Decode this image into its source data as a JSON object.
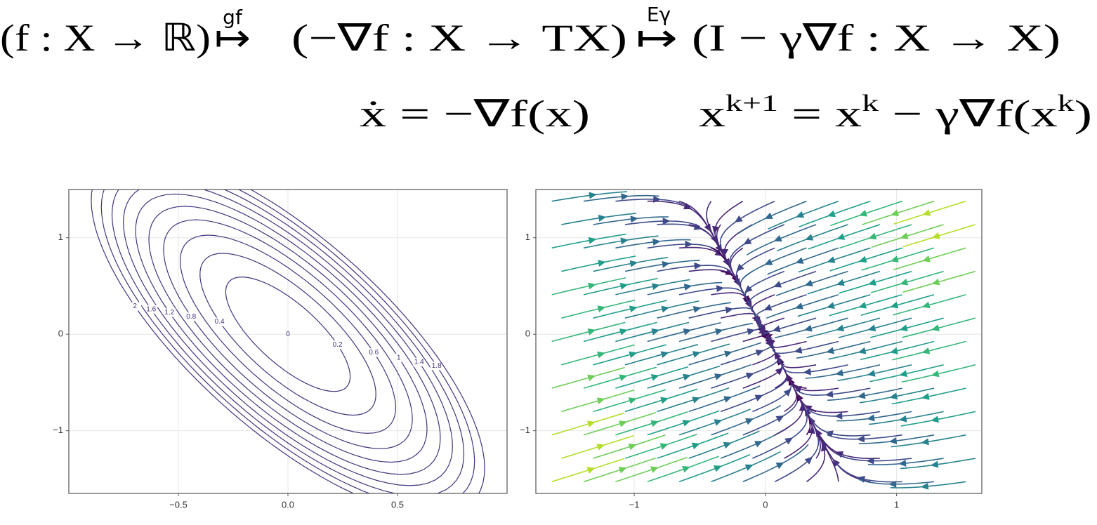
{
  "equations": {
    "map1": "(f : X → ℝ)",
    "arrow1": "↦",
    "label1": "gf",
    "map2": "(−∇f : X → TX)",
    "arrow2": "↦",
    "label2": "Eγ",
    "map3": "(I − γ∇f : X → X)",
    "flow": "ẋ = −∇f(x)",
    "step": [
      "x",
      "k+1",
      " = x",
      "k",
      " − γ∇f(x",
      "k",
      ")"
    ]
  },
  "chart_data": [
    {
      "type": "contour",
      "levels": [
        0,
        0.2,
        0.4,
        0.6,
        0.8,
        1,
        1.2,
        1.4,
        1.6,
        1.8,
        2
      ],
      "color": "#46327e",
      "xlim": [
        -1,
        1
      ],
      "ylim": [
        -1.65,
        1.5
      ],
      "xticks": [
        {
          "value": -0.5,
          "label": "−0.5"
        },
        {
          "value": 0,
          "label": "0.0"
        },
        0.5
      ],
      "yticks": [
        {
          "value": -1,
          "label": "−1"
        },
        0,
        1
      ],
      "grid": true
    },
    {
      "type": "streamplot",
      "colormap": "viridis",
      "xlim": [
        -1.75,
        1.65
      ],
      "ylim": [
        -1.65,
        1.5
      ],
      "xticks": [
        {
          "value": -1,
          "label": "−1"
        },
        0,
        1
      ],
      "yticks": [
        {
          "value": -1,
          "label": "−1"
        },
        0,
        1
      ],
      "grid": true
    }
  ]
}
